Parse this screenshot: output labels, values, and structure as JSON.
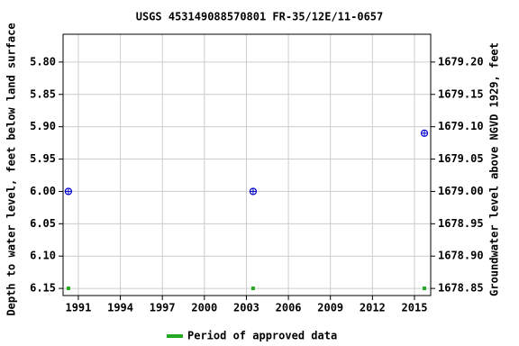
{
  "chart_data": {
    "type": "scatter",
    "title": "USGS 453149088570801 FR-35/12E/11-0657",
    "y_label": "Depth to water level, feet below land surface",
    "y2_label": "Groundwater level above NGVD 1929, feet",
    "xlim": [
      1989.91,
      2016.16
    ],
    "xticks": [
      1991,
      1994,
      1997,
      2000,
      2003,
      2006,
      2009,
      2012,
      2015
    ],
    "ylim": [
      6.161,
      5.757
    ],
    "yticks": [
      {
        "value": 5.8,
        "label": "5.80"
      },
      {
        "value": 5.85,
        "label": "5.85"
      },
      {
        "value": 5.9,
        "label": "5.90"
      },
      {
        "value": 5.95,
        "label": "5.95"
      },
      {
        "value": 6.0,
        "label": "6.00"
      },
      {
        "value": 6.05,
        "label": "6.05"
      },
      {
        "value": 6.1,
        "label": "6.10"
      },
      {
        "value": 6.15,
        "label": "6.15"
      }
    ],
    "y2lim": [
      1678.839,
      1679.243
    ],
    "y2ticks": [
      {
        "value": 1679.2,
        "label": "1679.20"
      },
      {
        "value": 1679.15,
        "label": "1679.15"
      },
      {
        "value": 1679.1,
        "label": "1679.10"
      },
      {
        "value": 1679.05,
        "label": "1679.05"
      },
      {
        "value": 1679.0,
        "label": "1679.00"
      },
      {
        "value": 1678.95,
        "label": "1678.95"
      },
      {
        "value": 1678.9,
        "label": "1678.90"
      },
      {
        "value": 1678.85,
        "label": "1678.85"
      }
    ],
    "grid": true,
    "series": [
      {
        "color": "#0000cc",
        "x": [
          1990.29,
          2003.48,
          2015.71
        ],
        "values": [
          6.0,
          6.0,
          5.91
        ]
      }
    ],
    "approved": {
      "name": "Period of approved data",
      "color": "#22aa22",
      "x": [
        1990.29,
        2003.48,
        2015.71
      ]
    }
  }
}
